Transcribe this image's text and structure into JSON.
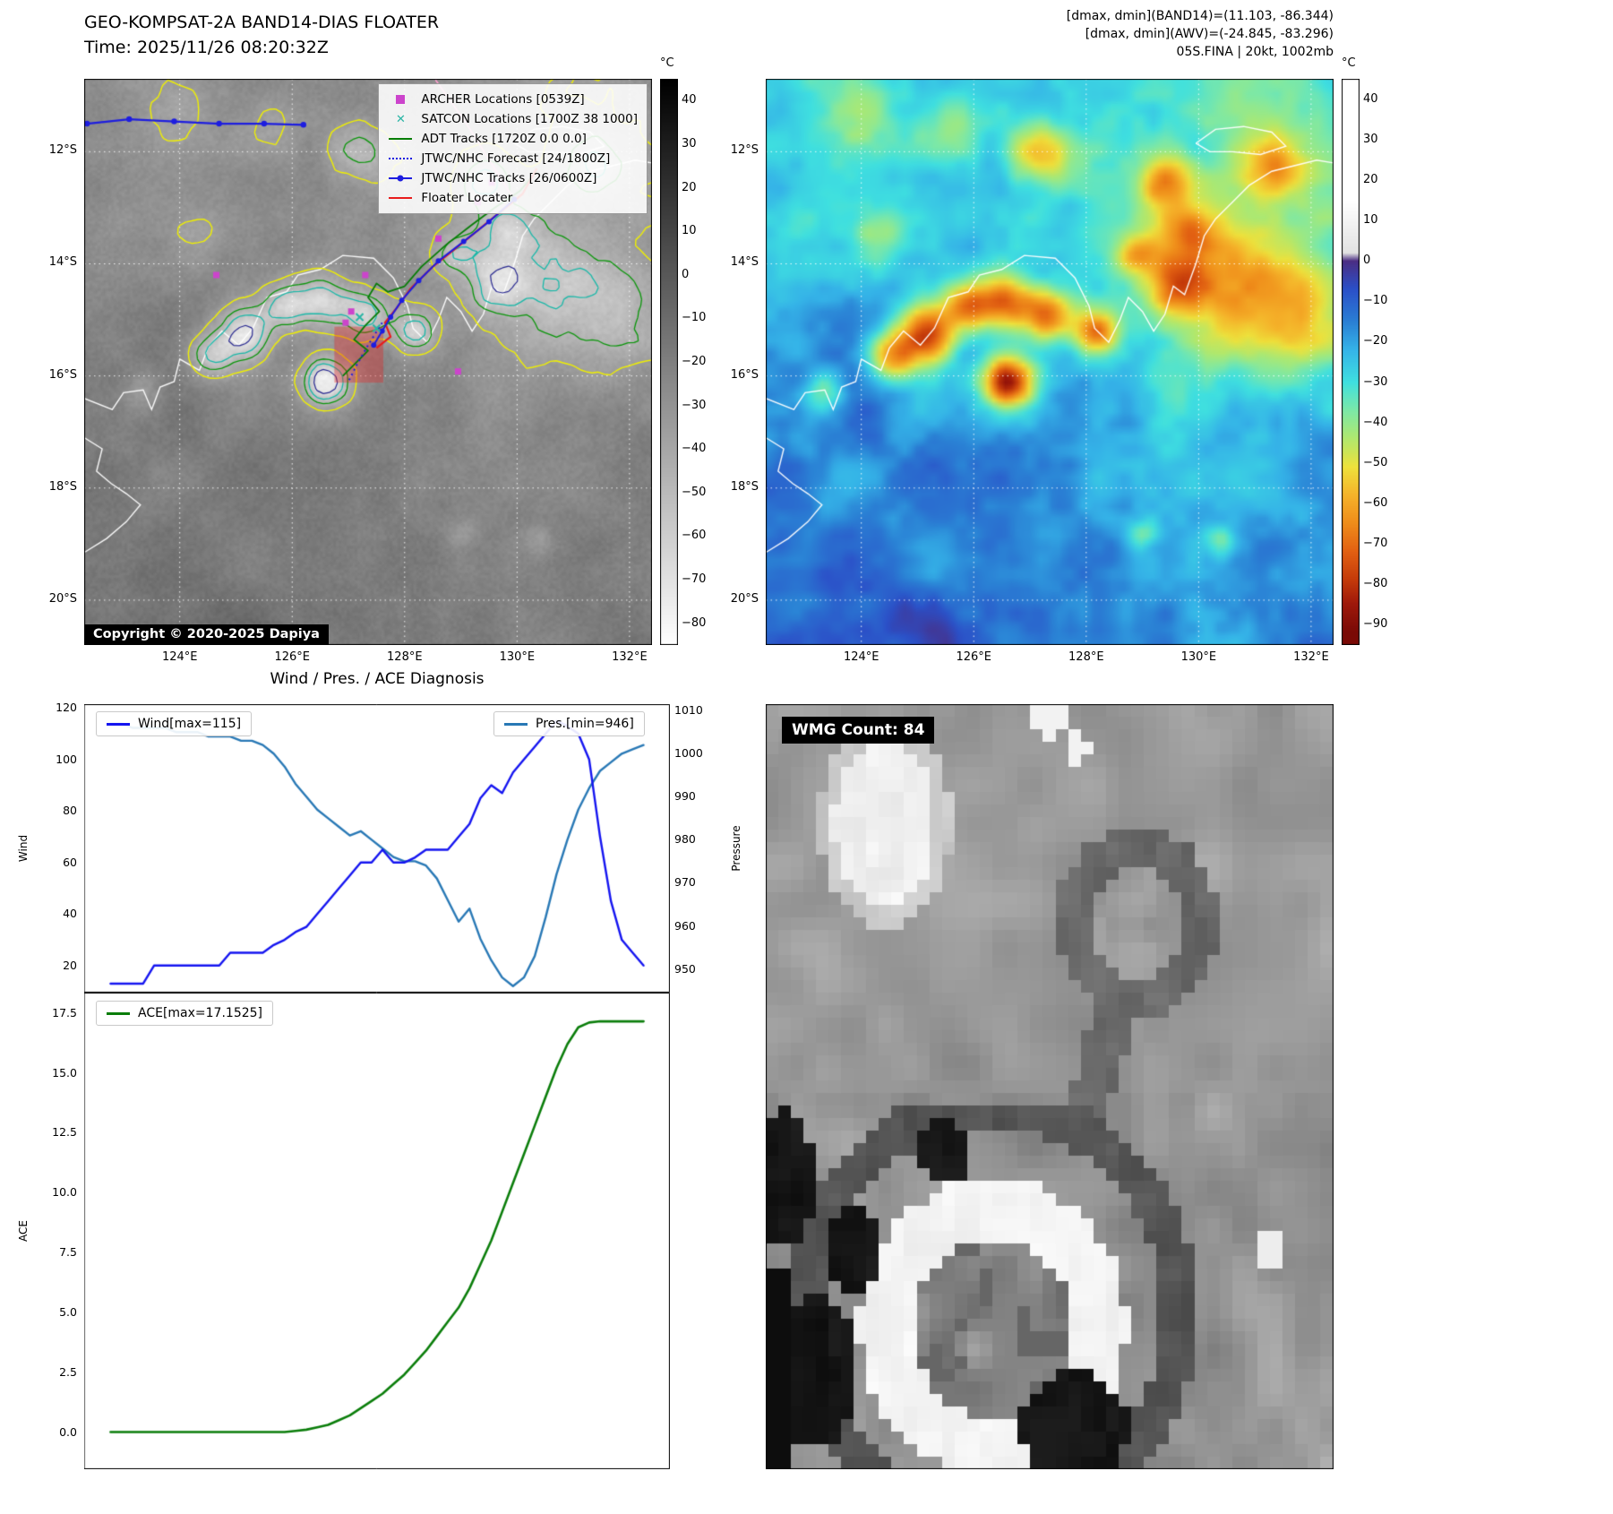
{
  "band14_panel": {
    "title": "GEO-KOMPSAT-2A BAND14-DIAS FLOATER",
    "time_line": "Time: 2025/11/26 08:20:32Z",
    "copyright": "Copyright © 2020-2025 Dapiya",
    "legend": [
      {
        "label": "ARCHER Locations [0539Z]",
        "marker": "square",
        "color": "#cc44cc"
      },
      {
        "label": "SATCON Locations [1700Z 38 1000]",
        "marker": "x",
        "color": "#2ab5a5"
      },
      {
        "label": "ADT Tracks [1720Z 0.0 0.0]",
        "marker": "line",
        "color": "#067d06"
      },
      {
        "label": "JTWC/NHC Forecast [24/1800Z]",
        "marker": "dotted",
        "color": "#1d1de0"
      },
      {
        "label": "JTWC/NHC Tracks [26/0600Z]",
        "marker": "line-dot",
        "color": "#1d1de0"
      },
      {
        "label": "Floater Locater",
        "marker": "line",
        "color": "#e81c1c"
      }
    ],
    "lat_ticks": {
      "labels": [
        "12°S",
        "14°S",
        "16°S",
        "18°S",
        "20°S"
      ],
      "values": [
        12,
        14,
        16,
        18,
        20
      ]
    },
    "lon_ticks": {
      "labels": [
        "124°E",
        "126°E",
        "128°E",
        "130°E",
        "132°E"
      ],
      "values": [
        124,
        126,
        128,
        130,
        132
      ]
    },
    "colorbar": {
      "unit": "°C",
      "tick_values": [
        40,
        30,
        20,
        10,
        0,
        -10,
        -20,
        -30,
        -40,
        -50,
        -60,
        -70,
        -80
      ],
      "range": [
        45,
        -85
      ],
      "top_color": "#000000",
      "bottom_color": "#ffffff"
    }
  },
  "awv_panel": {
    "annotations": [
      "[dmax, dmin](BAND14)=(11.103, -86.344)",
      "[dmax, dmin](AWV)=(-24.845, -83.296)",
      "05S.FINA | 20kt, 1002mb"
    ],
    "lat_ticks": {
      "labels": [
        "12°S",
        "14°S",
        "16°S",
        "18°S",
        "20°S"
      ],
      "values": [
        12,
        14,
        16,
        18,
        20
      ]
    },
    "lon_ticks": {
      "labels": [
        "124°E",
        "126°E",
        "128°E",
        "130°E",
        "132°E"
      ],
      "values": [
        124,
        126,
        128,
        130,
        132
      ]
    },
    "colorbar": {
      "unit": "°C",
      "tick_values": [
        40,
        30,
        20,
        10,
        0,
        -10,
        -20,
        -30,
        -40,
        -50,
        -60,
        -70,
        -80,
        -90
      ],
      "range": [
        45,
        -95
      ],
      "gradient": [
        [
          15,
          "#ffffff"
        ],
        [
          2,
          "#e2e2e2"
        ],
        [
          0,
          "#4b2e83"
        ],
        [
          -7,
          "#2b50c8"
        ],
        [
          -15,
          "#2a7fd4"
        ],
        [
          -22,
          "#35b3e8"
        ],
        [
          -30,
          "#3fe0e0"
        ],
        [
          -37,
          "#7ce8a8"
        ],
        [
          -44,
          "#b0e86e"
        ],
        [
          -51,
          "#eee23c"
        ],
        [
          -58,
          "#f5b32a"
        ],
        [
          -65,
          "#ef8c1a"
        ],
        [
          -72,
          "#e26012"
        ],
        [
          -79,
          "#c43a0a"
        ],
        [
          -85,
          "#9e180a"
        ],
        [
          -92,
          "#7a0a06"
        ]
      ]
    }
  },
  "wmg_panel": {
    "label": "WMG Count: 84"
  },
  "chart_data": [
    {
      "type": "line",
      "title": "Wind / Pres. / ACE Diagnosis",
      "ylabel_left": "Wind",
      "ylabel_right": "Pressure",
      "yticks_left": [
        20,
        40,
        60,
        80,
        100,
        120
      ],
      "yticks_right": [
        950,
        960,
        970,
        980,
        990,
        1000,
        1010
      ],
      "ylim_left": [
        9.5,
        121.5
      ],
      "ylim_right": [
        944.5,
        1011.5
      ],
      "grid": false,
      "series": [
        {
          "name": "Wind[max=115]",
          "axis": "left",
          "color": "#1414f0",
          "values": [
            13,
            13,
            13,
            13,
            20,
            20,
            20,
            20,
            20,
            20,
            20,
            25,
            25,
            25,
            25,
            28,
            30,
            33,
            35,
            40,
            45,
            50,
            55,
            60,
            60,
            65,
            60,
            60,
            62,
            65,
            65,
            65,
            70,
            75,
            85,
            90,
            87,
            95,
            100,
            105,
            110,
            115,
            113,
            110,
            100,
            70,
            45,
            30,
            25,
            20
          ]
        },
        {
          "name": "Pres.[min=946]",
          "axis": "right",
          "color": "#2878b5",
          "values": [
            1007,
            1007,
            1006,
            1006,
            1006,
            1006,
            1005,
            1005,
            1005,
            1004,
            1004,
            1004,
            1003,
            1003,
            1002,
            1000,
            997,
            993,
            990,
            987,
            985,
            983,
            981,
            982,
            980,
            978,
            976,
            975,
            975,
            974,
            971,
            966,
            961,
            964,
            957,
            952,
            948,
            946,
            948,
            953,
            962,
            972,
            980,
            987,
            992,
            996,
            998,
            1000,
            1001,
            1002
          ]
        }
      ]
    },
    {
      "type": "line",
      "ylabel": "ACE",
      "yticks": [
        0.0,
        2.5,
        5.0,
        7.5,
        10.0,
        12.5,
        15.0,
        17.5
      ],
      "ylim": [
        -1.55,
        18.35
      ],
      "grid": false,
      "series": [
        {
          "name": "ACE[max=17.1525]",
          "color": "#0a7d0a",
          "values": [
            0,
            0,
            0,
            0,
            0,
            0,
            0,
            0,
            0,
            0,
            0,
            0,
            0,
            0,
            0,
            0,
            0,
            0.05,
            0.1,
            0.2,
            0.3,
            0.5,
            0.7,
            1,
            1.3,
            1.6,
            2,
            2.4,
            2.9,
            3.4,
            4,
            4.6,
            5.2,
            6,
            7,
            8,
            9.2,
            10.4,
            11.6,
            12.8,
            14,
            15.2,
            16.2,
            16.9,
            17.1,
            17.15,
            17.15,
            17.15,
            17.15,
            17.15
          ]
        }
      ]
    }
  ]
}
